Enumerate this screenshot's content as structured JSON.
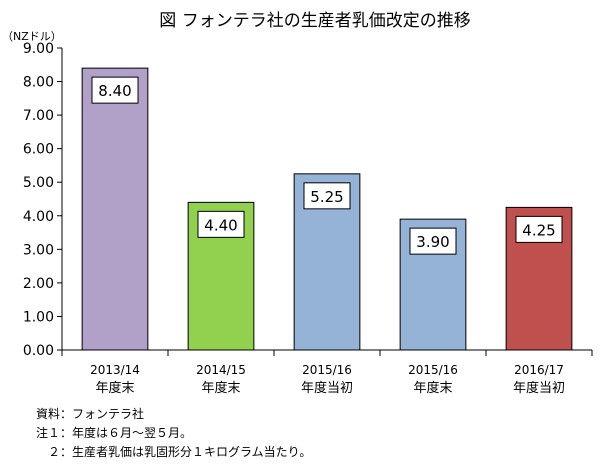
{
  "chart_data": {
    "type": "bar",
    "title": "図 フォンテラ社の生産者乳価改定の推移",
    "ylabel": "（NZドル）",
    "xlabel": "",
    "ylim": [
      0,
      9
    ],
    "yticks": [
      "0.00",
      "1.00",
      "2.00",
      "3.00",
      "4.00",
      "5.00",
      "6.00",
      "7.00",
      "8.00",
      "9.00"
    ],
    "grid": false,
    "legend": "none",
    "categories": [
      {
        "line1": "2013/14",
        "line2": "年度末"
      },
      {
        "line1": "2014/15",
        "line2": "年度末"
      },
      {
        "line1": "2015/16",
        "line2": "年度当初"
      },
      {
        "line1": "2015/16",
        "line2": "年度末"
      },
      {
        "line1": "2016/17",
        "line2": "年度当初"
      }
    ],
    "values": [
      8.4,
      4.4,
      5.25,
      3.9,
      4.25
    ],
    "data_labels": [
      "8.40",
      "4.40",
      "5.25",
      "3.90",
      "4.25"
    ],
    "colors": [
      "#b1a0c7",
      "#92d050",
      "#95b3d7",
      "#95b3d7",
      "#c0504d"
    ]
  },
  "notes": [
    "資料：フォンテラ社",
    "注１：年度は６月～翌５月。",
    "　２：生産者乳価は乳固形分１キログラム当たり。"
  ]
}
